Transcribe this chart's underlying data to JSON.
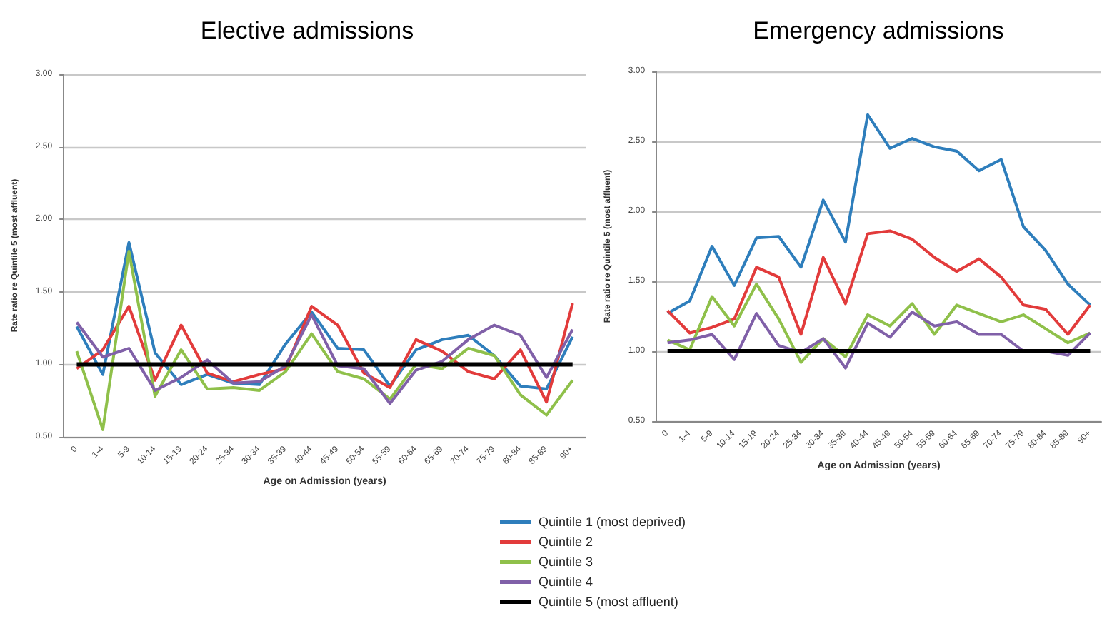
{
  "chart_data": [
    {
      "type": "line",
      "title": "Elective admissions",
      "xlabel": "Age on Admission (years)",
      "ylabel": "Rate ratio re Quintile 5 (most affluent)",
      "categories": [
        "0",
        "1-4",
        "5-9",
        "10-14",
        "15-19",
        "20-24",
        "25-34",
        "30-34",
        "35-39",
        "40-44",
        "45-49",
        "50-54",
        "55-59",
        "60-64",
        "65-69",
        "70-74",
        "75-79",
        "80-84",
        "85-89",
        "90+"
      ],
      "series": [
        {
          "name": "Quintile 1 (most deprived)",
          "color": "#2e7ebc",
          "values": [
            1.26,
            0.93,
            1.84,
            1.08,
            0.86,
            0.93,
            0.87,
            0.86,
            1.14,
            1.36,
            1.11,
            1.1,
            0.85,
            1.1,
            1.17,
            1.2,
            1.06,
            0.85,
            0.83,
            1.19
          ]
        },
        {
          "name": "Quintile 2",
          "color": "#e23b3b",
          "values": [
            0.97,
            1.1,
            1.4,
            0.89,
            1.27,
            0.94,
            0.88,
            0.93,
            0.97,
            1.4,
            1.27,
            0.94,
            0.84,
            1.17,
            1.09,
            0.95,
            0.9,
            1.1,
            0.74,
            1.42
          ]
        },
        {
          "name": "Quintile 3",
          "color": "#8fc04a",
          "values": [
            1.09,
            0.55,
            1.78,
            0.78,
            1.1,
            0.83,
            0.84,
            0.82,
            0.95,
            1.21,
            0.95,
            0.9,
            0.76,
            1.0,
            0.97,
            1.11,
            1.06,
            0.79,
            0.65,
            0.89
          ]
        },
        {
          "name": "Quintile 4",
          "color": "#8060a8",
          "values": [
            1.29,
            1.05,
            1.11,
            0.82,
            0.91,
            1.03,
            0.87,
            0.88,
            0.99,
            1.34,
            0.99,
            0.97,
            0.73,
            0.96,
            1.02,
            1.17,
            1.27,
            1.2,
            0.91,
            1.24
          ]
        },
        {
          "name": "Quintile 5 (most affluent)",
          "color": "#000000",
          "values": [
            1,
            1,
            1,
            1,
            1,
            1,
            1,
            1,
            1,
            1,
            1,
            1,
            1,
            1,
            1,
            1,
            1,
            1,
            1,
            1
          ]
        }
      ],
      "ylim": [
        0.5,
        3
      ],
      "yticks": [
        {
          "value": 0.5,
          "label": "0.50"
        },
        {
          "value": 1,
          "label": "1.00"
        },
        {
          "value": 1.5,
          "label": "1.50"
        },
        {
          "value": 2,
          "label": "2.00"
        },
        {
          "value": 2.5,
          "label": "2.50"
        },
        {
          "value": 3,
          "label": "3.00"
        }
      ],
      "grid": "y",
      "legend": "bottom",
      "marker": "none",
      "line_style": "solid"
    },
    {
      "type": "line",
      "title": "Emergency admissions",
      "xlabel": "Age on Admission (years)",
      "ylabel": "Rate ratio re Quintile 5 (most affluent)",
      "categories": [
        "0",
        "1-4",
        "5-9",
        "10-14",
        "15-19",
        "20-24",
        "25-34",
        "30-34",
        "35-39",
        "40-44",
        "45-49",
        "50-54",
        "55-59",
        "60-64",
        "65-69",
        "70-74",
        "75-79",
        "80-84",
        "85-89",
        "90+"
      ],
      "series": [
        {
          "color": "#2e7ebc",
          "values": [
            1.27,
            1.36,
            1.75,
            1.47,
            1.81,
            1.82,
            1.6,
            2.08,
            1.78,
            2.69,
            2.45,
            2.52,
            2.46,
            2.43,
            2.29,
            2.37,
            1.89,
            1.72,
            1.48,
            1.33
          ]
        },
        {
          "color": "#e23b3b",
          "values": [
            1.29,
            1.13,
            1.17,
            1.23,
            1.6,
            1.53,
            1.12,
            1.67,
            1.34,
            1.84,
            1.86,
            1.8,
            1.67,
            1.57,
            1.66,
            1.53,
            1.33,
            1.3,
            1.12,
            1.33
          ]
        },
        {
          "color": "#8fc04a",
          "values": [
            1.08,
            1.01,
            1.39,
            1.18,
            1.48,
            1.23,
            0.92,
            1.09,
            0.96,
            1.26,
            1.18,
            1.34,
            1.12,
            1.33,
            1.27,
            1.21,
            1.26,
            1.16,
            1.06,
            1.13
          ]
        },
        {
          "color": "#8060a8",
          "values": [
            1.06,
            1.08,
            1.12,
            0.94,
            1.27,
            1.04,
            0.99,
            1.09,
            0.88,
            1.2,
            1.1,
            1.28,
            1.18,
            1.21,
            1.12,
            1.12,
            1.0,
            1.0,
            0.97,
            1.13
          ]
        },
        {
          "color": "#000000",
          "values": [
            1,
            1,
            1,
            1,
            1,
            1,
            1,
            1,
            1,
            1,
            1,
            1,
            1,
            1,
            1,
            1,
            1,
            1,
            1,
            1
          ]
        }
      ],
      "ylim": [
        0.5,
        3
      ],
      "yticks": [
        {
          "value": 0.5,
          "label": "0.50"
        },
        {
          "value": 1,
          "label": "1.00"
        },
        {
          "value": 1.5,
          "label": "1.50"
        },
        {
          "value": 2,
          "label": "2.00"
        },
        {
          "value": 2.5,
          "label": "2.50"
        },
        {
          "value": 3,
          "label": "3.00"
        }
      ],
      "grid": "y",
      "marker": "none",
      "line_style": "solid"
    }
  ]
}
